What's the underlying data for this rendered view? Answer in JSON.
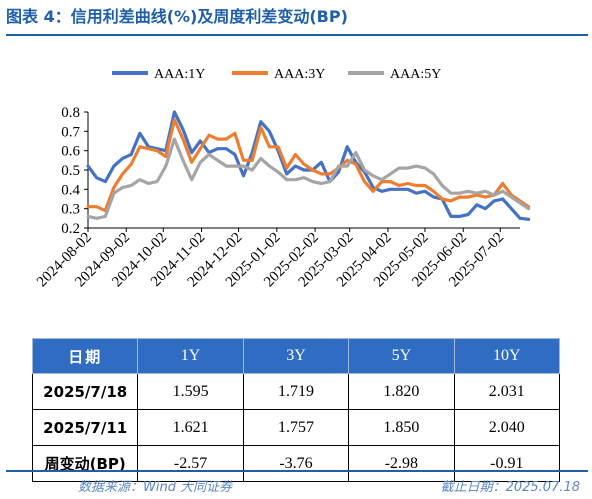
{
  "title": "图表 4：信用利差曲线(%)及周度利差变动(BP)",
  "source": "数据来源：Wind 大同证券",
  "cutoff": "截止日期：2025.07.18",
  "colors": {
    "accent": "#1f5ea8",
    "header_bg": "#2f6cc2"
  },
  "chart_data": {
    "type": "line",
    "title": "",
    "xlabel": "",
    "ylabel": "",
    "ylim": [
      0.2,
      0.8
    ],
    "yticks": [
      "0.2",
      "0.3",
      "0.4",
      "0.5",
      "0.6",
      "0.7",
      "0.8"
    ],
    "x_start": "2024-08-02",
    "x_end": "2025-07-18",
    "xticks": [
      "2024-08-02",
      "2024-09-02",
      "2024-10-02",
      "2024-11-02",
      "2024-12-02",
      "2025-01-02",
      "2025-02-02",
      "2025-03-02",
      "2025-04-02",
      "2025-05-02",
      "2025-06-02",
      "2025-07-02"
    ],
    "legend_position": "top",
    "grid": false,
    "series": [
      {
        "name": "AAA:1Y",
        "color": "#4472c4",
        "points": [
          [
            "2024-08-02",
            0.52
          ],
          [
            "2024-08-09",
            0.46
          ],
          [
            "2024-08-16",
            0.44
          ],
          [
            "2024-08-23",
            0.52
          ],
          [
            "2024-08-30",
            0.56
          ],
          [
            "2024-09-06",
            0.58
          ],
          [
            "2024-09-13",
            0.69
          ],
          [
            "2024-09-20",
            0.62
          ],
          [
            "2024-09-27",
            0.61
          ],
          [
            "2024-10-04",
            0.6
          ],
          [
            "2024-10-11",
            0.8
          ],
          [
            "2024-10-18",
            0.71
          ],
          [
            "2024-10-25",
            0.59
          ],
          [
            "2024-11-01",
            0.65
          ],
          [
            "2024-11-08",
            0.59
          ],
          [
            "2024-11-15",
            0.61
          ],
          [
            "2024-11-22",
            0.61
          ],
          [
            "2024-11-29",
            0.58
          ],
          [
            "2024-12-06",
            0.47
          ],
          [
            "2024-12-13",
            0.59
          ],
          [
            "2024-12-20",
            0.75
          ],
          [
            "2024-12-27",
            0.7
          ],
          [
            "2025-01-03",
            0.6
          ],
          [
            "2025-01-10",
            0.48
          ],
          [
            "2025-01-17",
            0.52
          ],
          [
            "2025-01-24",
            0.5
          ],
          [
            "2025-01-31",
            0.5
          ],
          [
            "2025-02-07",
            0.54
          ],
          [
            "2025-02-14",
            0.44
          ],
          [
            "2025-02-21",
            0.49
          ],
          [
            "2025-02-28",
            0.62
          ],
          [
            "2025-03-07",
            0.54
          ],
          [
            "2025-03-14",
            0.49
          ],
          [
            "2025-03-21",
            0.41
          ],
          [
            "2025-03-28",
            0.39
          ],
          [
            "2025-04-04",
            0.4
          ],
          [
            "2025-04-11",
            0.4
          ],
          [
            "2025-04-18",
            0.4
          ],
          [
            "2025-04-25",
            0.38
          ],
          [
            "2025-05-02",
            0.39
          ],
          [
            "2025-05-09",
            0.36
          ],
          [
            "2025-05-16",
            0.35
          ],
          [
            "2025-05-23",
            0.26
          ],
          [
            "2025-05-30",
            0.26
          ],
          [
            "2025-06-06",
            0.27
          ],
          [
            "2025-06-13",
            0.32
          ],
          [
            "2025-06-20",
            0.3
          ],
          [
            "2025-06-27",
            0.34
          ],
          [
            "2025-07-04",
            0.35
          ],
          [
            "2025-07-11",
            0.3
          ],
          [
            "2025-07-18",
            0.25
          ],
          [
            "2025-07-25",
            0.245
          ]
        ]
      },
      {
        "name": "AAA:3Y",
        "color": "#ed7d31",
        "points": [
          [
            "2024-08-02",
            0.31
          ],
          [
            "2024-08-09",
            0.31
          ],
          [
            "2024-08-16",
            0.29
          ],
          [
            "2024-08-23",
            0.41
          ],
          [
            "2024-08-30",
            0.48
          ],
          [
            "2024-09-06",
            0.53
          ],
          [
            "2024-09-13",
            0.62
          ],
          [
            "2024-09-20",
            0.61
          ],
          [
            "2024-09-27",
            0.6
          ],
          [
            "2024-10-04",
            0.57
          ],
          [
            "2024-10-11",
            0.76
          ],
          [
            "2024-10-18",
            0.66
          ],
          [
            "2024-10-25",
            0.54
          ],
          [
            "2024-11-01",
            0.61
          ],
          [
            "2024-11-08",
            0.68
          ],
          [
            "2024-11-15",
            0.66
          ],
          [
            "2024-11-22",
            0.66
          ],
          [
            "2024-11-29",
            0.69
          ],
          [
            "2024-12-06",
            0.55
          ],
          [
            "2024-12-13",
            0.55
          ],
          [
            "2024-12-20",
            0.72
          ],
          [
            "2024-12-27",
            0.62
          ],
          [
            "2025-01-03",
            0.62
          ],
          [
            "2025-01-10",
            0.51
          ],
          [
            "2025-01-17",
            0.58
          ],
          [
            "2025-01-24",
            0.53
          ],
          [
            "2025-01-31",
            0.5
          ],
          [
            "2025-02-07",
            0.48
          ],
          [
            "2025-02-14",
            0.48
          ],
          [
            "2025-02-21",
            0.51
          ],
          [
            "2025-02-28",
            0.55
          ],
          [
            "2025-03-07",
            0.53
          ],
          [
            "2025-03-14",
            0.44
          ],
          [
            "2025-03-21",
            0.39
          ],
          [
            "2025-03-28",
            0.44
          ],
          [
            "2025-04-04",
            0.44
          ],
          [
            "2025-04-11",
            0.42
          ],
          [
            "2025-04-18",
            0.43
          ],
          [
            "2025-04-25",
            0.42
          ],
          [
            "2025-05-02",
            0.42
          ],
          [
            "2025-05-09",
            0.39
          ],
          [
            "2025-05-16",
            0.35
          ],
          [
            "2025-05-23",
            0.34
          ],
          [
            "2025-05-30",
            0.36
          ],
          [
            "2025-06-06",
            0.36
          ],
          [
            "2025-06-13",
            0.37
          ],
          [
            "2025-06-20",
            0.36
          ],
          [
            "2025-06-27",
            0.37
          ],
          [
            "2025-07-04",
            0.43
          ],
          [
            "2025-07-11",
            0.37
          ],
          [
            "2025-07-18",
            0.34
          ],
          [
            "2025-07-25",
            0.31
          ]
        ]
      },
      {
        "name": "AAA:5Y",
        "color": "#a5a5a5",
        "points": [
          [
            "2024-08-02",
            0.26
          ],
          [
            "2024-08-09",
            0.25
          ],
          [
            "2024-08-16",
            0.26
          ],
          [
            "2024-08-23",
            0.38
          ],
          [
            "2024-08-30",
            0.41
          ],
          [
            "2024-09-06",
            0.42
          ],
          [
            "2024-09-13",
            0.45
          ],
          [
            "2024-09-20",
            0.43
          ],
          [
            "2024-09-27",
            0.44
          ],
          [
            "2024-10-04",
            0.52
          ],
          [
            "2024-10-11",
            0.66
          ],
          [
            "2024-10-18",
            0.55
          ],
          [
            "2024-10-25",
            0.45
          ],
          [
            "2024-11-01",
            0.54
          ],
          [
            "2024-11-08",
            0.58
          ],
          [
            "2024-11-15",
            0.55
          ],
          [
            "2024-11-22",
            0.52
          ],
          [
            "2024-11-29",
            0.52
          ],
          [
            "2024-12-06",
            0.52
          ],
          [
            "2024-12-13",
            0.5
          ],
          [
            "2024-12-20",
            0.56
          ],
          [
            "2024-12-27",
            0.52
          ],
          [
            "2025-01-03",
            0.49
          ],
          [
            "2025-01-10",
            0.45
          ],
          [
            "2025-01-17",
            0.45
          ],
          [
            "2025-01-24",
            0.46
          ],
          [
            "2025-01-31",
            0.44
          ],
          [
            "2025-02-07",
            0.43
          ],
          [
            "2025-02-14",
            0.44
          ],
          [
            "2025-02-21",
            0.52
          ],
          [
            "2025-02-28",
            0.52
          ],
          [
            "2025-03-07",
            0.59
          ],
          [
            "2025-03-14",
            0.5
          ],
          [
            "2025-03-21",
            0.47
          ],
          [
            "2025-03-28",
            0.45
          ],
          [
            "2025-04-04",
            0.48
          ],
          [
            "2025-04-11",
            0.51
          ],
          [
            "2025-04-18",
            0.51
          ],
          [
            "2025-04-25",
            0.52
          ],
          [
            "2025-05-02",
            0.51
          ],
          [
            "2025-05-09",
            0.48
          ],
          [
            "2025-05-16",
            0.42
          ],
          [
            "2025-05-23",
            0.38
          ],
          [
            "2025-05-30",
            0.38
          ],
          [
            "2025-06-06",
            0.39
          ],
          [
            "2025-06-13",
            0.38
          ],
          [
            "2025-06-20",
            0.39
          ],
          [
            "2025-06-27",
            0.37
          ],
          [
            "2025-07-04",
            0.39
          ],
          [
            "2025-07-11",
            0.36
          ],
          [
            "2025-07-18",
            0.33
          ],
          [
            "2025-07-25",
            0.3
          ]
        ]
      }
    ]
  },
  "table": {
    "headers": [
      "日期",
      "1Y",
      "3Y",
      "5Y",
      "10Y"
    ],
    "rows": [
      [
        "2025/7/18",
        "1.595",
        "1.719",
        "1.820",
        "2.031"
      ],
      [
        "2025/7/11",
        "1.621",
        "1.757",
        "1.850",
        "2.040"
      ],
      [
        "周变动(BP)",
        "-2.57",
        "-3.76",
        "-2.98",
        "-0.91"
      ]
    ]
  }
}
